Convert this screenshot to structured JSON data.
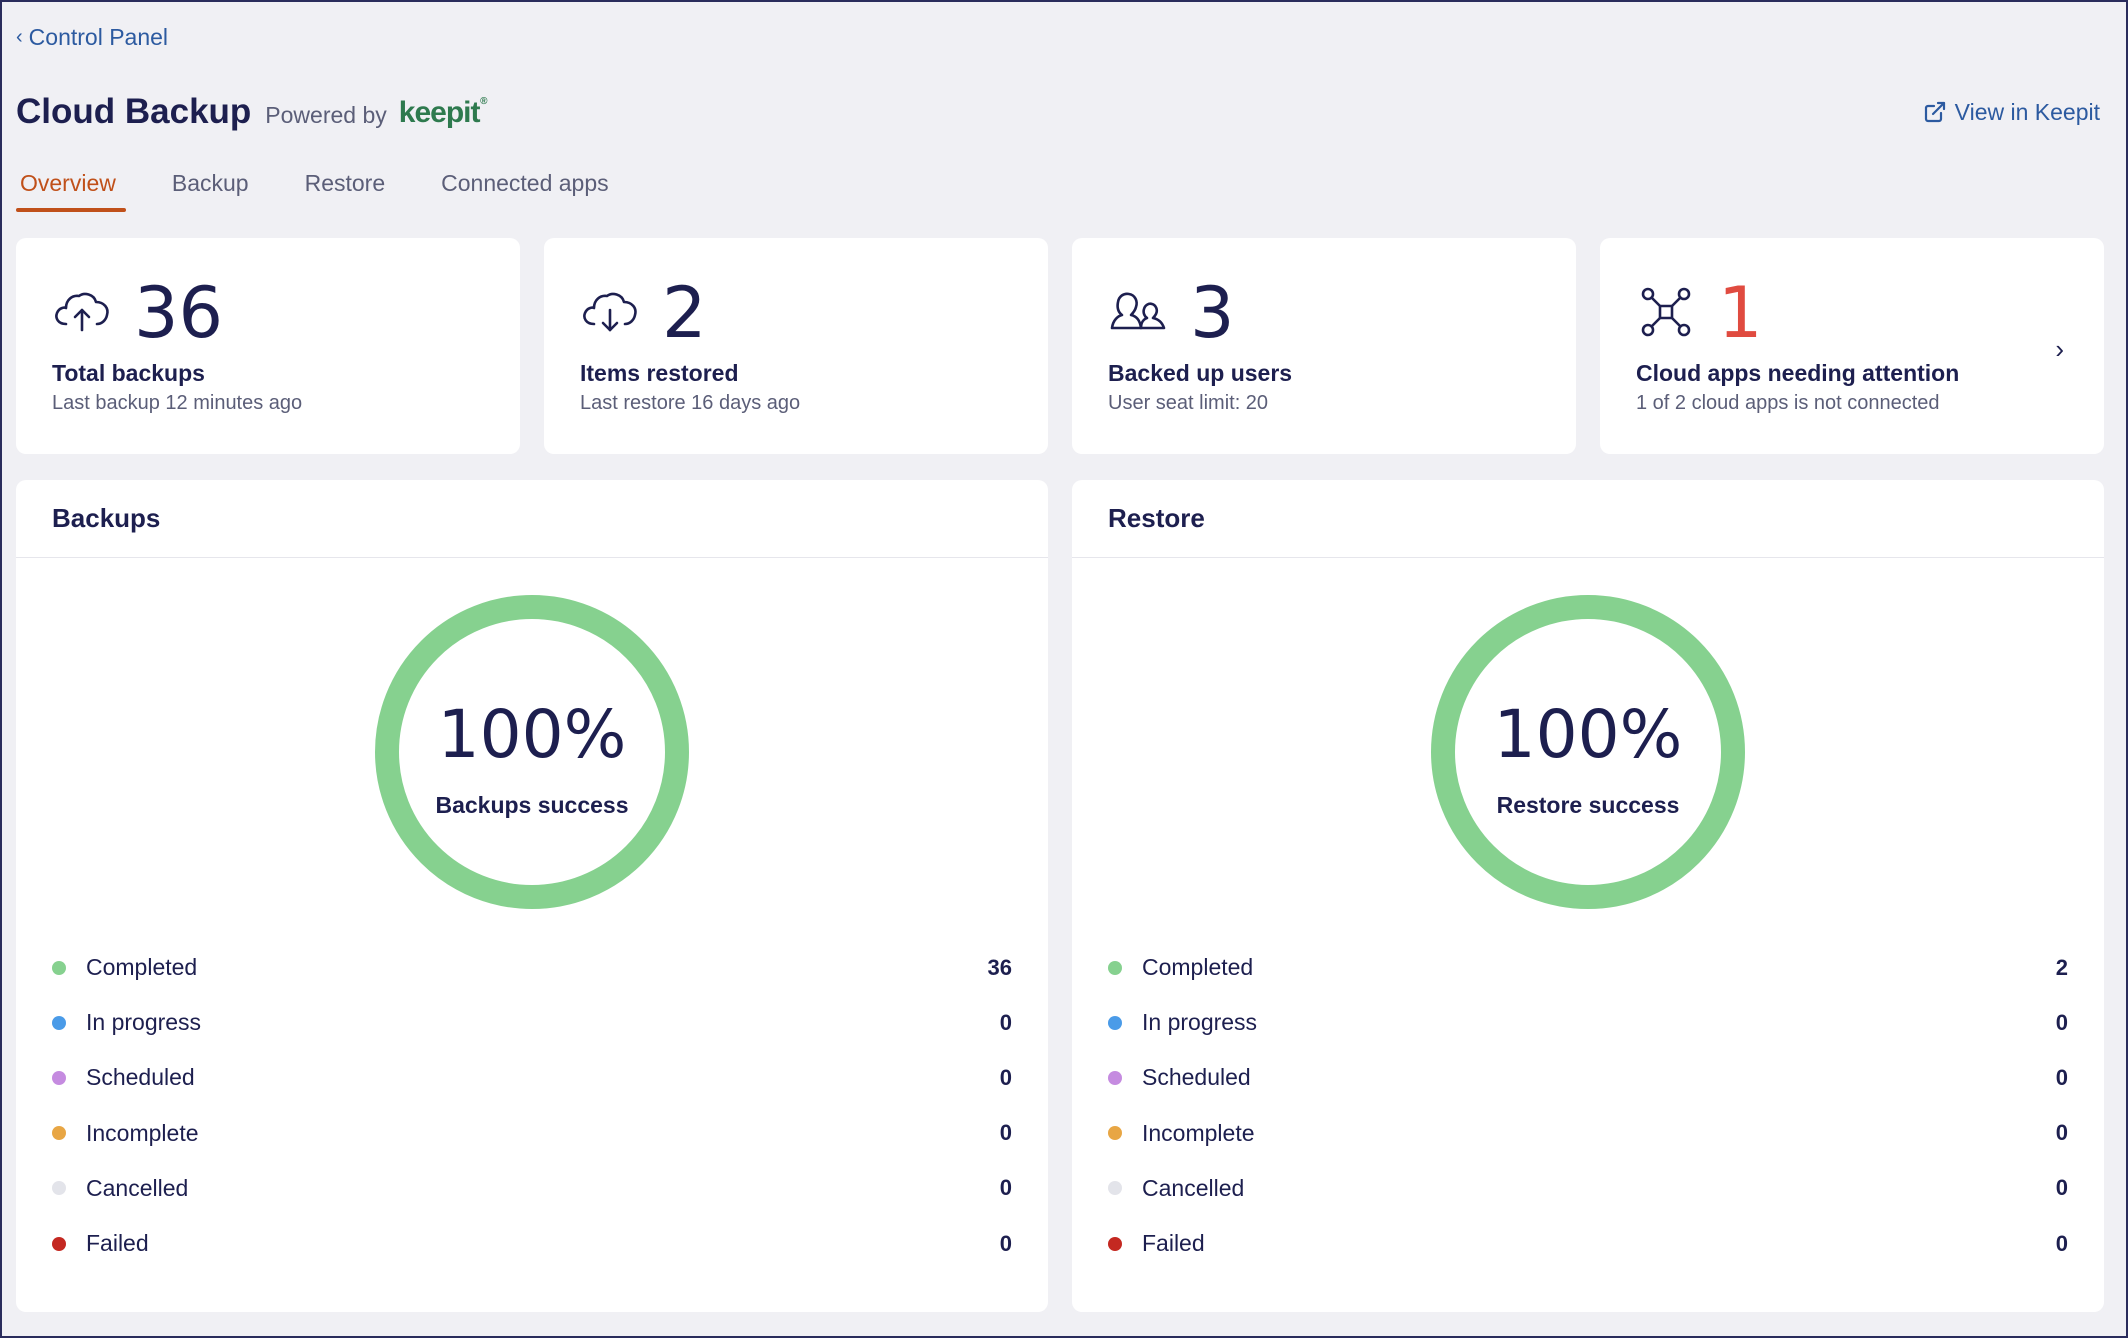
{
  "breadcrumb": {
    "chevron": "‹",
    "label": "Control Panel"
  },
  "header": {
    "title": "Cloud Backup",
    "powered_by": "Powered by",
    "brand": "keepit",
    "brand_mark": "®",
    "view_link": "View in Keepit",
    "view_icon": "external-link-icon"
  },
  "tabs": [
    {
      "label": "Overview",
      "active": true
    },
    {
      "label": "Backup",
      "active": false
    },
    {
      "label": "Restore",
      "active": false
    },
    {
      "label": "Connected apps",
      "active": false
    }
  ],
  "stats": [
    {
      "icon": "cloud-upload-icon",
      "value": "36",
      "label": "Total backups",
      "sub": "Last backup 12 minutes ago"
    },
    {
      "icon": "cloud-download-icon",
      "value": "2",
      "label": "Items restored",
      "sub": "Last restore 16 days ago"
    },
    {
      "icon": "users-icon",
      "value": "3",
      "label": "Backed up users",
      "sub": "User seat limit: 20"
    },
    {
      "icon": "network-icon",
      "value": "1",
      "label": "Cloud apps needing attention",
      "sub": "1 of 2 cloud apps is not connected",
      "arrow": "›"
    }
  ],
  "panels": {
    "backups": {
      "title": "Backups",
      "percent": "100%",
      "caption": "Backups success",
      "success_fraction": 1.0,
      "legend": [
        {
          "label": "Completed",
          "value": "36",
          "color": "#86d18f"
        },
        {
          "label": "In progress",
          "value": "0",
          "color": "#4a9be8"
        },
        {
          "label": "Scheduled",
          "value": "0",
          "color": "#c58be0"
        },
        {
          "label": "Incomplete",
          "value": "0",
          "color": "#e8a644"
        },
        {
          "label": "Cancelled",
          "value": "0",
          "color": "#e3e4ea"
        },
        {
          "label": "Failed",
          "value": "0",
          "color": "#c42821"
        }
      ]
    },
    "restore": {
      "title": "Restore",
      "percent": "100%",
      "caption": "Restore success",
      "success_fraction": 1.0,
      "legend": [
        {
          "label": "Completed",
          "value": "2",
          "color": "#86d18f"
        },
        {
          "label": "In progress",
          "value": "0",
          "color": "#4a9be8"
        },
        {
          "label": "Scheduled",
          "value": "0",
          "color": "#c58be0"
        },
        {
          "label": "Incomplete",
          "value": "0",
          "color": "#e8a644"
        },
        {
          "label": "Cancelled",
          "value": "0",
          "color": "#e3e4ea"
        },
        {
          "label": "Failed",
          "value": "0",
          "color": "#c42821"
        }
      ]
    }
  },
  "colors": {
    "accent_tab": "#c0501a",
    "link": "#2c5aa0",
    "donut_success": "#86d18f",
    "alert": "#e04b40"
  }
}
